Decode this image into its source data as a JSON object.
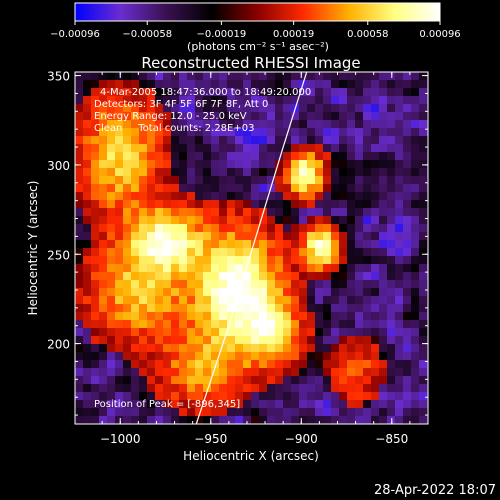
{
  "chart_data": {
    "type": "heatmap",
    "title": "Reconstructed RHESSI Image",
    "xlabel": "Heliocentric X (arcsec)",
    "ylabel": "Heliocentric Y (arcsec)",
    "xlim": [
      -1025,
      -830
    ],
    "ylim": [
      155,
      352
    ],
    "x_ticks": [
      -1000,
      -950,
      -900,
      -850
    ],
    "x_tick_labels": [
      "−1000",
      "−950",
      "−900",
      "−850"
    ],
    "y_ticks": [
      200,
      250,
      300,
      350
    ],
    "y_tick_labels": [
      "200",
      "250",
      "300",
      "350"
    ],
    "colorbar": {
      "range": [
        -0.00096,
        0.00096
      ],
      "ticks": [
        -0.00096,
        -0.00058,
        -0.00019,
        0.00019,
        0.00058,
        0.00096
      ],
      "tick_labels": [
        "−0.00096",
        "−0.00058",
        "−0.00019",
        "0.00019",
        "0.00058",
        "0.00096"
      ],
      "unit_label": "(photons cm⁻² s⁻¹ asec⁻²)",
      "colors": [
        "#0000ff",
        "#6a2dd0",
        "#3a1050",
        "#000000",
        "#8a0000",
        "#ff2a00",
        "#ffb000",
        "#ffff80",
        "#ffffff"
      ]
    },
    "annotations": [
      "4-Mar-2005 18:47:36.000 to 18:49:20.000",
      "Detectors: 3F 4F 5F 6F 7F 8F, Att 0",
      "Energy Range: 12.0 - 25.0 keV",
      "Clean     Total counts: 2.28E+03"
    ],
    "peak_label": "Position of Peak = [-896,345]",
    "peak": [
      -896,
      345
    ],
    "sources": [
      {
        "x": -935,
        "y": 230,
        "amp": 1.0,
        "sx": 16,
        "sy": 22
      },
      {
        "x": -975,
        "y": 258,
        "amp": 0.8,
        "sx": 14,
        "sy": 12
      },
      {
        "x": -990,
        "y": 228,
        "amp": 0.55,
        "sx": 18,
        "sy": 18
      },
      {
        "x": -898,
        "y": 295,
        "amp": 0.9,
        "sx": 7,
        "sy": 8
      },
      {
        "x": -889,
        "y": 254,
        "amp": 0.85,
        "sx": 7,
        "sy": 8
      },
      {
        "x": -1000,
        "y": 305,
        "amp": 0.6,
        "sx": 15,
        "sy": 22
      },
      {
        "x": -955,
        "y": 185,
        "amp": 0.45,
        "sx": 16,
        "sy": 14
      },
      {
        "x": -915,
        "y": 205,
        "amp": 0.6,
        "sx": 10,
        "sy": 12
      },
      {
        "x": -870,
        "y": 185,
        "amp": 0.3,
        "sx": 10,
        "sy": 12
      }
    ],
    "limb": [
      [
        -958,
        155
      ],
      [
        -940,
        210
      ],
      [
        -925,
        260
      ],
      [
        -910,
        310
      ],
      [
        -897,
        352
      ]
    ]
  },
  "footer_timestamp": "28-Apr-2022 18:07"
}
